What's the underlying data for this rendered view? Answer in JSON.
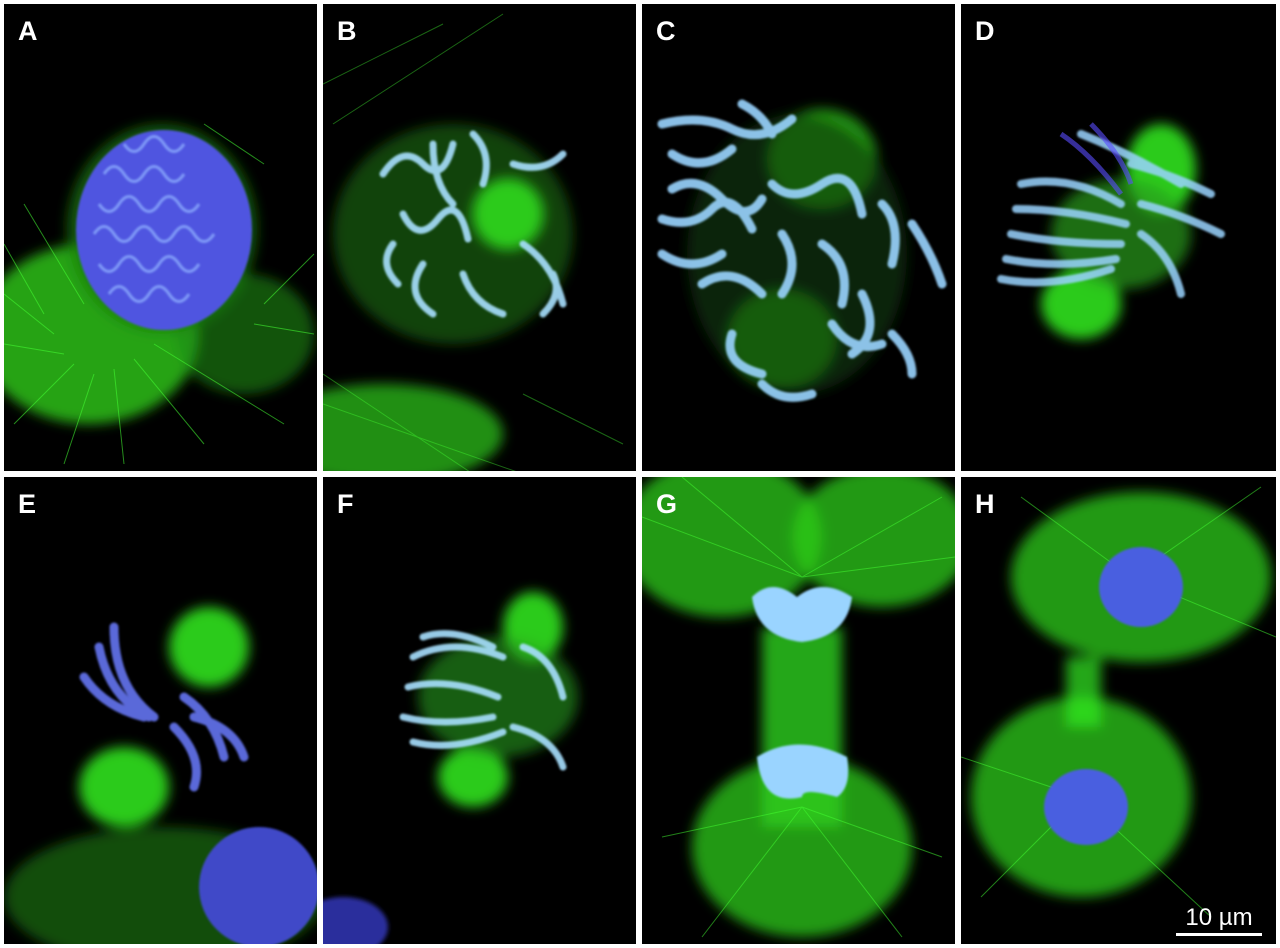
{
  "figure": {
    "panels": [
      {
        "id": "a",
        "label": "A"
      },
      {
        "id": "b",
        "label": "B"
      },
      {
        "id": "c",
        "label": "C"
      },
      {
        "id": "d",
        "label": "D"
      },
      {
        "id": "e",
        "label": "E"
      },
      {
        "id": "f",
        "label": "F"
      },
      {
        "id": "g",
        "label": "G"
      },
      {
        "id": "h",
        "label": "H"
      }
    ],
    "scale_bar_label": "10 µm"
  },
  "colors": {
    "background": "#000000",
    "microtubules": "#33ff22",
    "chromosomes": "#5a6cff",
    "chromosomes_light": "#a8e0ff",
    "separator": "#ffffff"
  }
}
